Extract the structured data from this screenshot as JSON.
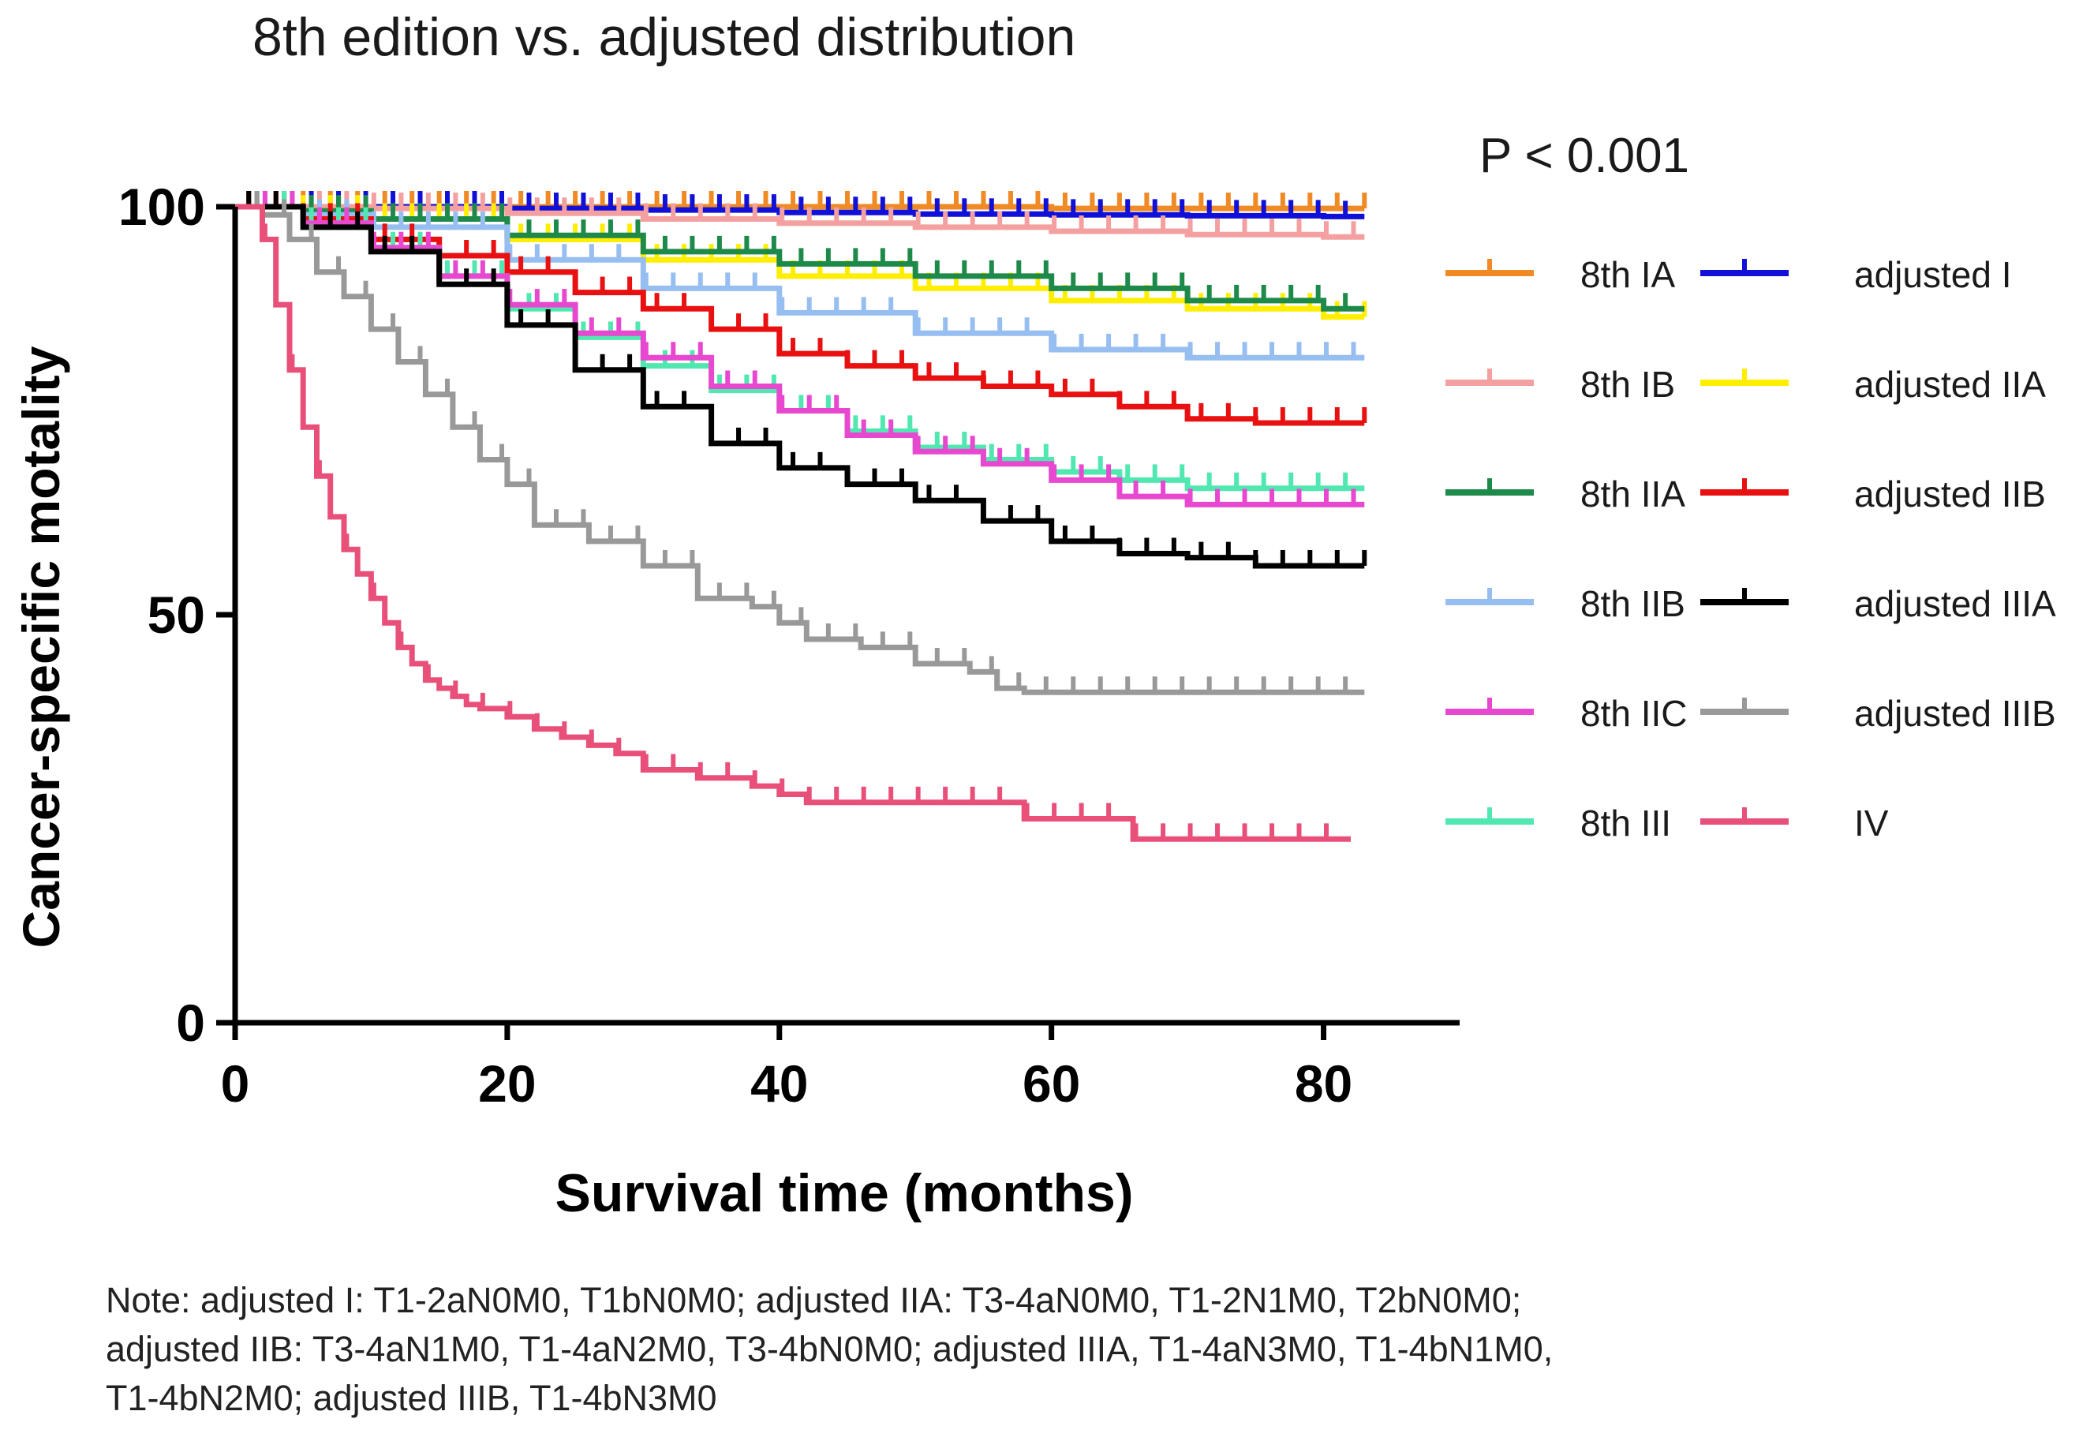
{
  "chart_data": {
    "type": "line",
    "subtype": "kaplan-meier step survival curves with censor ticks",
    "title": "8th edition vs. adjusted distribution",
    "xlabel": "Survival time (months)",
    "ylabel": "Cancer-specific motality",
    "xlim": [
      0,
      90
    ],
    "ylim": [
      0,
      100
    ],
    "xticks": [
      0,
      20,
      40,
      60,
      80
    ],
    "yticks": [
      0,
      50,
      100
    ],
    "grid": false,
    "legend_position": "right",
    "pvalue_text": "P < 0.001",
    "series": [
      {
        "name": "8th IA",
        "color": "#F08A24",
        "x": [
          0,
          10,
          20,
          30,
          40,
          50,
          60,
          70,
          80,
          83
        ],
        "y": [
          100,
          100,
          100,
          100,
          100,
          100,
          99.8,
          99.8,
          99.8,
          99.8
        ]
      },
      {
        "name": "adjusted I",
        "color": "#1010D8",
        "x": [
          0,
          10,
          20,
          30,
          40,
          50,
          60,
          70,
          80,
          83
        ],
        "y": [
          100,
          100,
          99.8,
          99.6,
          99.3,
          99.1,
          99,
          98.9,
          98.8,
          98.8
        ]
      },
      {
        "name": "8th IB",
        "color": "#F4A0A0",
        "x": [
          0,
          10,
          20,
          30,
          40,
          50,
          60,
          70,
          80,
          83
        ],
        "y": [
          100,
          99.8,
          99.2,
          98.5,
          98,
          97.5,
          97,
          96.6,
          96.3,
          96.3
        ]
      },
      {
        "name": "adjusted IIA",
        "color": "#FFEE00",
        "x": [
          0,
          5,
          10,
          20,
          30,
          40,
          50,
          60,
          70,
          80,
          83
        ],
        "y": [
          100,
          99.5,
          98.5,
          96,
          93.5,
          91.5,
          90,
          88.5,
          87.5,
          86.5,
          86.5
        ]
      },
      {
        "name": "8th IIA",
        "color": "#1E8A4A",
        "x": [
          0,
          5,
          10,
          20,
          30,
          40,
          50,
          60,
          70,
          80,
          83
        ],
        "y": [
          100,
          99.5,
          98.5,
          96.5,
          94.5,
          93,
          91.5,
          90,
          88.5,
          87.5,
          87.5
        ]
      },
      {
        "name": "8th IIB",
        "color": "#96BEF0",
        "x": [
          0,
          5,
          10,
          20,
          30,
          40,
          50,
          60,
          70,
          80,
          83
        ],
        "y": [
          100,
          99,
          97.5,
          93.5,
          90,
          87,
          84.5,
          82.5,
          81.5,
          81.5,
          81.5
        ]
      },
      {
        "name": "adjusted IIB",
        "color": "#E81010",
        "x": [
          0,
          5,
          10,
          15,
          20,
          25,
          30,
          35,
          40,
          45,
          50,
          55,
          60,
          65,
          70,
          75,
          80,
          83
        ],
        "y": [
          100,
          98.5,
          96,
          94,
          92,
          89.5,
          87.5,
          85,
          82,
          80.5,
          79,
          78,
          77,
          75.5,
          74,
          73.5,
          73.5,
          73.5
        ]
      },
      {
        "name": "8th III",
        "color": "#50E8B0",
        "x": [
          0,
          5,
          10,
          15,
          20,
          25,
          30,
          35,
          40,
          45,
          50,
          55,
          60,
          65,
          70,
          75,
          80,
          83
        ],
        "y": [
          100,
          98,
          95,
          91.5,
          87.5,
          84,
          80.5,
          77.5,
          75,
          72.5,
          70.5,
          69,
          67.5,
          66.5,
          65.5,
          65.5,
          65.5,
          65.5
        ]
      },
      {
        "name": "8th IIC",
        "color": "#E848D0",
        "x": [
          0,
          5,
          10,
          15,
          20,
          25,
          30,
          35,
          40,
          45,
          50,
          55,
          60,
          65,
          70,
          75,
          80,
          83
        ],
        "y": [
          100,
          98,
          95,
          91.5,
          88,
          84.5,
          81.5,
          78,
          75,
          72,
          70,
          68.5,
          66.5,
          64.5,
          63.5,
          63.5,
          63.5,
          63.5
        ]
      },
      {
        "name": "adjusted IIIA",
        "color": "#000000",
        "x": [
          0,
          5,
          10,
          15,
          20,
          25,
          30,
          35,
          40,
          45,
          50,
          55,
          60,
          65,
          70,
          75,
          80,
          83
        ],
        "y": [
          100,
          97.5,
          94.5,
          90.5,
          85.5,
          80,
          75.5,
          71,
          68,
          66,
          64,
          61.5,
          59,
          57.5,
          57,
          56,
          56,
          56
        ]
      },
      {
        "name": "adjusted IIIB",
        "color": "#999999",
        "x": [
          0,
          2,
          4,
          6,
          8,
          10,
          12,
          14,
          16,
          18,
          20,
          22,
          26,
          30,
          34,
          38,
          40,
          42,
          46,
          50,
          54,
          56,
          58,
          62,
          66,
          70,
          74,
          78,
          83
        ],
        "y": [
          100,
          99,
          96,
          92,
          89,
          85,
          81,
          77,
          73,
          69,
          66,
          61,
          59,
          56,
          52,
          51,
          49,
          47,
          46,
          44,
          43,
          41,
          40.5,
          40.5,
          40.5,
          40.5,
          40.5,
          40.5,
          40.5
        ]
      },
      {
        "name": "IV",
        "color": "#E8507A",
        "x": [
          0,
          2,
          3,
          4,
          5,
          6,
          7,
          8,
          9,
          10,
          11,
          12,
          13,
          14,
          15,
          16,
          17,
          18,
          20,
          22,
          24,
          26,
          28,
          30,
          34,
          36,
          38,
          40,
          42,
          46,
          50,
          54,
          56,
          58,
          62,
          64,
          66,
          70,
          74,
          78,
          82
        ],
        "y": [
          100,
          96,
          88,
          80,
          73,
          67,
          62,
          58,
          55,
          52,
          49,
          46,
          44,
          42,
          41,
          40,
          39,
          38.5,
          37.5,
          36,
          35,
          34,
          33,
          31,
          30,
          30,
          29,
          28,
          27,
          27,
          27,
          27,
          27,
          25,
          25,
          25,
          22.5,
          22.5,
          22.5,
          22.5,
          22.5
        ]
      }
    ],
    "legend": [
      {
        "name": "8th IA",
        "color": "#F08A24"
      },
      {
        "name": "adjusted I",
        "color": "#1010D8"
      },
      {
        "name": "8th IB",
        "color": "#F4A0A0"
      },
      {
        "name": "adjusted IIA",
        "color": "#FFEE00"
      },
      {
        "name": "8th IIA",
        "color": "#1E8A4A"
      },
      {
        "name": "adjusted IIB",
        "color": "#E81010"
      },
      {
        "name": "8th IIB",
        "color": "#96BEF0"
      },
      {
        "name": "adjusted IIIA",
        "color": "#000000"
      },
      {
        "name": "8th IIC",
        "color": "#E848D0"
      },
      {
        "name": "adjusted IIIB",
        "color": "#999999"
      },
      {
        "name": "8th III",
        "color": "#50E8B0"
      },
      {
        "name": "IV",
        "color": "#E8507A"
      }
    ]
  },
  "note_lines": [
    "Note: adjusted I: T1-2aN0M0, T1bN0M0; adjusted IIA: T3-4aN0M0, T1-2N1M0, T2bN0M0;",
    "adjusted IIB: T3-4aN1M0, T1-4aN2M0, T3-4bN0M0; adjusted IIIA, T1-4aN3M0, T1-4bN1M0,",
    "T1-4bN2M0; adjusted IIIB, T1-4bN3M0"
  ]
}
